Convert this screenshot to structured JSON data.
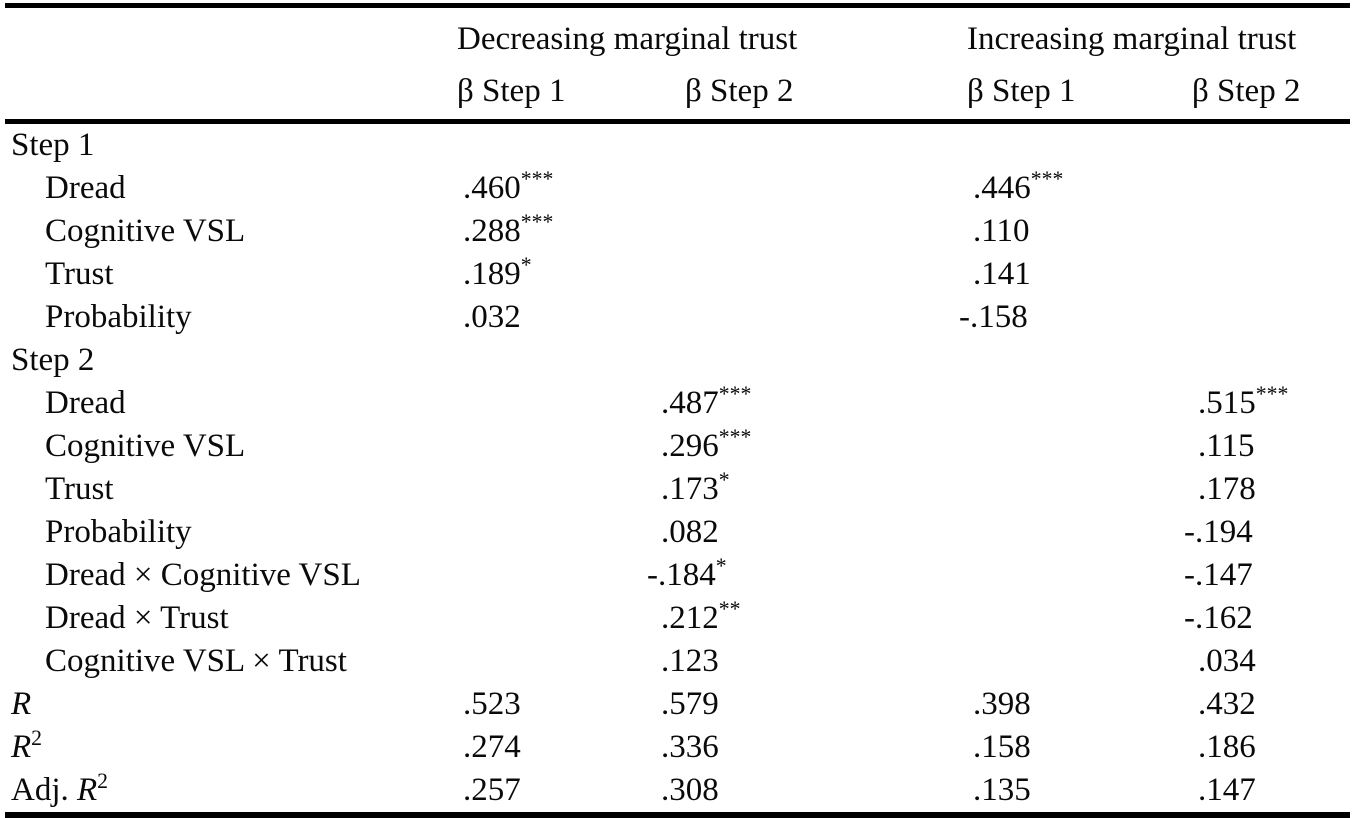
{
  "table": {
    "group_headers": [
      {
        "label": "Decreasing marginal trust"
      },
      {
        "label": "Increasing marginal trust"
      }
    ],
    "sub_headers": [
      {
        "label": "β Step 1"
      },
      {
        "label": "β Step 2"
      },
      {
        "label": "β Step 1"
      },
      {
        "label": "β Step 2"
      }
    ],
    "rows": [
      {
        "name": "section-step-1",
        "kind": "section",
        "plain": "Step 1",
        "cells": [
          null,
          null,
          null,
          null
        ]
      },
      {
        "name": "row-step1-dread",
        "kind": "predictor",
        "plain": "Dread",
        "cells": [
          {
            "v": ".460",
            "s": "***"
          },
          null,
          {
            "v": ".446",
            "s": "***"
          },
          null
        ]
      },
      {
        "name": "row-step1-cognitive-vsl",
        "kind": "predictor",
        "plain": "Cognitive VSL",
        "cells": [
          {
            "v": ".288",
            "s": "***"
          },
          null,
          {
            "v": ".110"
          },
          null
        ]
      },
      {
        "name": "row-step1-trust",
        "kind": "predictor",
        "plain": "Trust",
        "cells": [
          {
            "v": ".189",
            "s": "*"
          },
          null,
          {
            "v": ".141"
          },
          null
        ]
      },
      {
        "name": "row-step1-probability",
        "kind": "predictor",
        "plain": "Probability",
        "cells": [
          {
            "v": ".032"
          },
          null,
          {
            "v": "-.158"
          },
          null
        ]
      },
      {
        "name": "section-step-2",
        "kind": "section",
        "plain": "Step 2",
        "cells": [
          null,
          null,
          null,
          null
        ]
      },
      {
        "name": "row-step2-dread",
        "kind": "predictor",
        "plain": "Dread",
        "cells": [
          null,
          {
            "v": ".487",
            "s": "***"
          },
          null,
          {
            "v": ".515",
            "s": "***"
          }
        ]
      },
      {
        "name": "row-step2-cognitive-vsl",
        "kind": "predictor",
        "plain": "Cognitive VSL",
        "cells": [
          null,
          {
            "v": ".296",
            "s": "***"
          },
          null,
          {
            "v": ".115"
          }
        ]
      },
      {
        "name": "row-step2-trust",
        "kind": "predictor",
        "plain": "Trust",
        "cells": [
          null,
          {
            "v": ".173",
            "s": "*"
          },
          null,
          {
            "v": ".178"
          }
        ]
      },
      {
        "name": "row-step2-probability",
        "kind": "predictor",
        "plain": "Probability",
        "cells": [
          null,
          {
            "v": ".082"
          },
          null,
          {
            "v": "-.194"
          }
        ]
      },
      {
        "name": "row-dread-x-cognitive-vsl",
        "kind": "predictor",
        "plain": "Dread × Cognitive VSL",
        "cells": [
          null,
          {
            "v": "-.184",
            "s": "*"
          },
          null,
          {
            "v": "-.147"
          }
        ]
      },
      {
        "name": "row-dread-x-trust",
        "kind": "predictor",
        "plain": "Dread × Trust",
        "cells": [
          null,
          {
            "v": ".212",
            "s": "**"
          },
          null,
          {
            "v": "-.162"
          }
        ]
      },
      {
        "name": "row-cognitive-vsl-x-trust",
        "kind": "predictor",
        "plain": "Cognitive VSL × Trust",
        "cells": [
          null,
          {
            "v": ".123"
          },
          null,
          {
            "v": ".034"
          }
        ]
      },
      {
        "name": "row-r",
        "kind": "stat",
        "italic": "R",
        "cells": [
          {
            "v": ".523"
          },
          {
            "v": ".579"
          },
          {
            "v": ".398"
          },
          {
            "v": ".432"
          }
        ]
      },
      {
        "name": "row-r-squared",
        "kind": "stat",
        "italic": "R",
        "sup": "2",
        "cells": [
          {
            "v": ".274"
          },
          {
            "v": ".336"
          },
          {
            "v": ".158"
          },
          {
            "v": ".186"
          }
        ]
      },
      {
        "name": "row-adj-r-squared",
        "kind": "stat",
        "plain": "Adj. ",
        "italic": "R",
        "sup": "2",
        "cells": [
          {
            "v": ".257"
          },
          {
            "v": ".308"
          },
          {
            "v": ".135"
          },
          {
            "v": ".147"
          }
        ]
      }
    ]
  }
}
